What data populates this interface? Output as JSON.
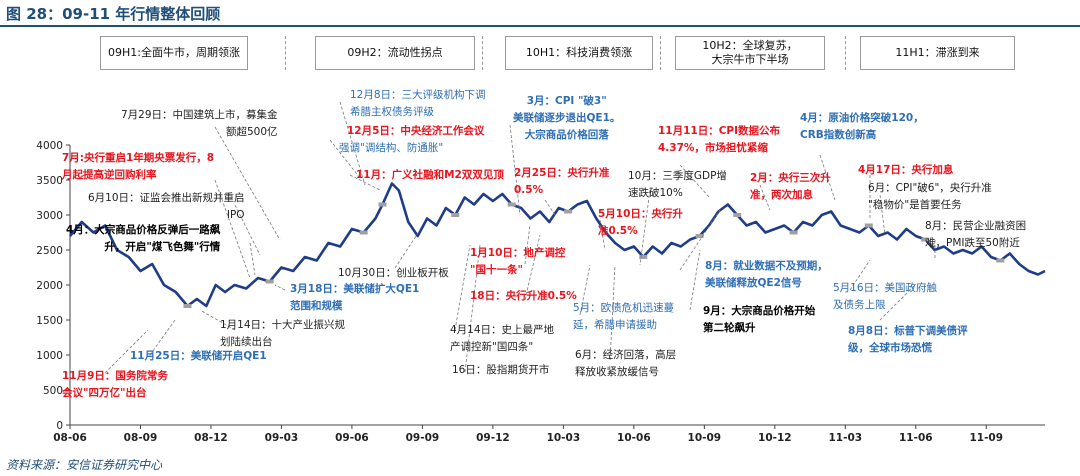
{
  "title": "图 28：09-11 年行情整体回顾",
  "source": "资料来源：安信证券研究中心",
  "phases": [
    {
      "label": "09H1:全面牛市，周期领涨"
    },
    {
      "label": "09H2：流动性拐点"
    },
    {
      "label": "10H1：科技消费领涨"
    },
    {
      "label": "10H2：全球复苏，\n大宗牛市下半场"
    },
    {
      "label": "11H1：滞涨到来"
    }
  ],
  "colors": {
    "line": "#1f3c88",
    "marker": "#a0a0a0",
    "red": "#e8141e",
    "blue": "#2e6eb5",
    "title": "#1f4e79"
  },
  "chart_data": {
    "type": "line",
    "title": "",
    "xlabel": "",
    "ylabel": "",
    "ylim": [
      0,
      4000
    ],
    "yticks": [
      0,
      500,
      1000,
      1500,
      2000,
      2500,
      3000,
      3500,
      4000
    ],
    "xticks": [
      "08-06",
      "08-09",
      "08-12",
      "09-03",
      "09-06",
      "09-09",
      "09-12",
      "10-03",
      "10-06",
      "10-09",
      "10-12",
      "11-03",
      "11-06",
      "11-09"
    ],
    "xlim": [
      0,
      41.5
    ],
    "grid": false,
    "series": [
      {
        "values": [
          [
            0,
            2700
          ],
          [
            0.5,
            2900
          ],
          [
            1,
            2750
          ],
          [
            1.5,
            2850
          ],
          [
            2,
            2500
          ],
          [
            2.5,
            2400
          ],
          [
            3,
            2200
          ],
          [
            3.5,
            2300
          ],
          [
            4,
            2000
          ],
          [
            4.5,
            1900
          ],
          [
            5,
            1700
          ],
          [
            5.4,
            1800
          ],
          [
            5.8,
            1700
          ],
          [
            6.2,
            2000
          ],
          [
            6.6,
            1900
          ],
          [
            7,
            2000
          ],
          [
            7.5,
            1950
          ],
          [
            8,
            2100
          ],
          [
            8.5,
            2050
          ],
          [
            9,
            2250
          ],
          [
            9.5,
            2200
          ],
          [
            10,
            2400
          ],
          [
            10.5,
            2350
          ],
          [
            11,
            2600
          ],
          [
            11.5,
            2550
          ],
          [
            12,
            2800
          ],
          [
            12.5,
            2750
          ],
          [
            13,
            2950
          ],
          [
            13.3,
            3150
          ],
          [
            13.7,
            3450
          ],
          [
            14,
            3350
          ],
          [
            14.4,
            2900
          ],
          [
            14.8,
            2700
          ],
          [
            15.2,
            2950
          ],
          [
            15.6,
            2850
          ],
          [
            16,
            3100
          ],
          [
            16.4,
            3000
          ],
          [
            16.8,
            3250
          ],
          [
            17.2,
            3150
          ],
          [
            17.6,
            3300
          ],
          [
            18,
            3200
          ],
          [
            18.4,
            3300
          ],
          [
            18.8,
            3150
          ],
          [
            19.2,
            3100
          ],
          [
            19.6,
            2950
          ],
          [
            20,
            3050
          ],
          [
            20.4,
            2900
          ],
          [
            20.8,
            3100
          ],
          [
            21.2,
            3050
          ],
          [
            21.6,
            3150
          ],
          [
            22,
            3200
          ],
          [
            22.4,
            2950
          ],
          [
            22.8,
            2750
          ],
          [
            23.2,
            2600
          ],
          [
            23.6,
            2500
          ],
          [
            24,
            2550
          ],
          [
            24.4,
            2400
          ],
          [
            24.8,
            2550
          ],
          [
            25.2,
            2450
          ],
          [
            25.6,
            2600
          ],
          [
            26,
            2550
          ],
          [
            26.4,
            2650
          ],
          [
            26.8,
            2700
          ],
          [
            27.2,
            2850
          ],
          [
            27.6,
            3050
          ],
          [
            28,
            3150
          ],
          [
            28.4,
            3000
          ],
          [
            28.8,
            2850
          ],
          [
            29.2,
            2900
          ],
          [
            29.6,
            2750
          ],
          [
            30,
            2800
          ],
          [
            30.4,
            2850
          ],
          [
            30.8,
            2750
          ],
          [
            31.2,
            2900
          ],
          [
            31.6,
            2850
          ],
          [
            32,
            3000
          ],
          [
            32.4,
            3050
          ],
          [
            32.8,
            2850
          ],
          [
            33.2,
            2800
          ],
          [
            33.6,
            2750
          ],
          [
            34,
            2850
          ],
          [
            34.4,
            2700
          ],
          [
            34.8,
            2750
          ],
          [
            35.2,
            2650
          ],
          [
            35.6,
            2800
          ],
          [
            36,
            2700
          ],
          [
            36.4,
            2650
          ],
          [
            36.8,
            2500
          ],
          [
            37.2,
            2550
          ],
          [
            37.6,
            2450
          ],
          [
            38,
            2500
          ],
          [
            38.4,
            2450
          ],
          [
            38.8,
            2550
          ],
          [
            39.2,
            2400
          ],
          [
            39.6,
            2350
          ],
          [
            40,
            2450
          ],
          [
            40.4,
            2300
          ],
          [
            40.8,
            2200
          ],
          [
            41.2,
            2150
          ],
          [
            41.5,
            2200
          ]
        ]
      }
    ],
    "annotations": [
      {
        "style": "blk",
        "lines": [
          "7月29日：中国建筑上市，募集金",
          "额超500亿"
        ]
      },
      {
        "style": "red",
        "lines": [
          "7月:央行重启1年期央票发行，8",
          "月起提高逆回购利率"
        ]
      },
      {
        "style": "blk",
        "lines": [
          "6月10日：证监会推出新规并重启",
          "IPO"
        ]
      },
      {
        "style": "blkb",
        "lines": [
          "4月：大宗商品价格反弹后一路飙",
          "升，开启\"煤飞色舞\"行情"
        ]
      },
      {
        "style": "blk",
        "lines": [
          "1月14日：十大产业振兴规",
          "划陆续出台"
        ]
      },
      {
        "style": "blueb",
        "lines": [
          "11月25日：美联储开启QE1"
        ]
      },
      {
        "style": "red",
        "lines": [
          "11月9日：国务院常务",
          "会议\"四万亿\"出台"
        ]
      },
      {
        "style": "blue",
        "lines": [
          "12月8日：三大评级机构下调",
          "希腊主权债务评级"
        ]
      },
      {
        "style": "red",
        "lines": [
          "12月5日：中央经济工作会议"
        ]
      },
      {
        "style": "blue",
        "lines": [
          "强调\"调结构、防通胀\""
        ]
      },
      {
        "style": "red",
        "lines": [
          "11月：广义社融和M2双双见顶"
        ]
      },
      {
        "style": "blk",
        "lines": [
          "10月30日：创业板开板"
        ]
      },
      {
        "style": "blueb",
        "lines": [
          "3月18日：美联储扩大QE1",
          "范围和规模"
        ]
      },
      {
        "style": "blueb",
        "lines": [
          "3月：CPI \"破3\"",
          "美联储逐步退出QE1。",
          "大宗商品价格回落"
        ]
      },
      {
        "style": "red",
        "lines": [
          "2月25日：央行升准",
          "0.5%"
        ]
      },
      {
        "style": "red",
        "lines": [
          "1月10日：地产调控",
          "\"国十一条\""
        ]
      },
      {
        "style": "red",
        "lines": [
          "18日：央行升准0.5%"
        ]
      },
      {
        "style": "blk",
        "lines": [
          "4月14日：史上最严地",
          "产调控新\"国四条\""
        ]
      },
      {
        "style": "blk",
        "lines": [
          "16日：股指期货开市"
        ]
      },
      {
        "style": "red",
        "lines": [
          "5月10日：央行升",
          "准0.5%"
        ]
      },
      {
        "style": "blue",
        "lines": [
          "5月：欧债危机迅速蔓",
          "延，希腊申请援助"
        ]
      },
      {
        "style": "blk",
        "lines": [
          "6月：经济回落，高层",
          "释放收紧放缓信号"
        ]
      },
      {
        "style": "red",
        "lines": [
          "11月11日：CPI数据公布",
          "4.37%，市场担忧紧缩"
        ]
      },
      {
        "style": "blk",
        "lines": [
          "10月：三季度GDP增",
          "速跌破10%"
        ]
      },
      {
        "style": "blueb",
        "lines": [
          "8月：就业数据不及预期，",
          "美联储释放QE2信号"
        ]
      },
      {
        "style": "blkb",
        "lines": [
          "9月：大宗商品价格开始",
          "第二轮飙升"
        ]
      },
      {
        "style": "red",
        "lines": [
          "2月：央行三次升",
          "准，两次加息"
        ]
      },
      {
        "style": "blueb",
        "lines": [
          "4月：原油价格突破120，",
          "CRB指数创新高"
        ]
      },
      {
        "style": "red",
        "lines": [
          "4月17日：央行加息"
        ]
      },
      {
        "style": "blk",
        "lines": [
          "6月：CPI\"破6\"，央行升准",
          "\"稳物价\"是首要任务"
        ]
      },
      {
        "style": "blk",
        "lines": [
          "8月：民营企业融资困",
          "难，PMI跌至50附近"
        ]
      },
      {
        "style": "blue",
        "lines": [
          "5月16日：美国政府触",
          "及债务上限"
        ]
      },
      {
        "style": "blueb",
        "lines": [
          "8月8日：标普下调美债评",
          "级，全球市场恐慌"
        ]
      }
    ]
  }
}
